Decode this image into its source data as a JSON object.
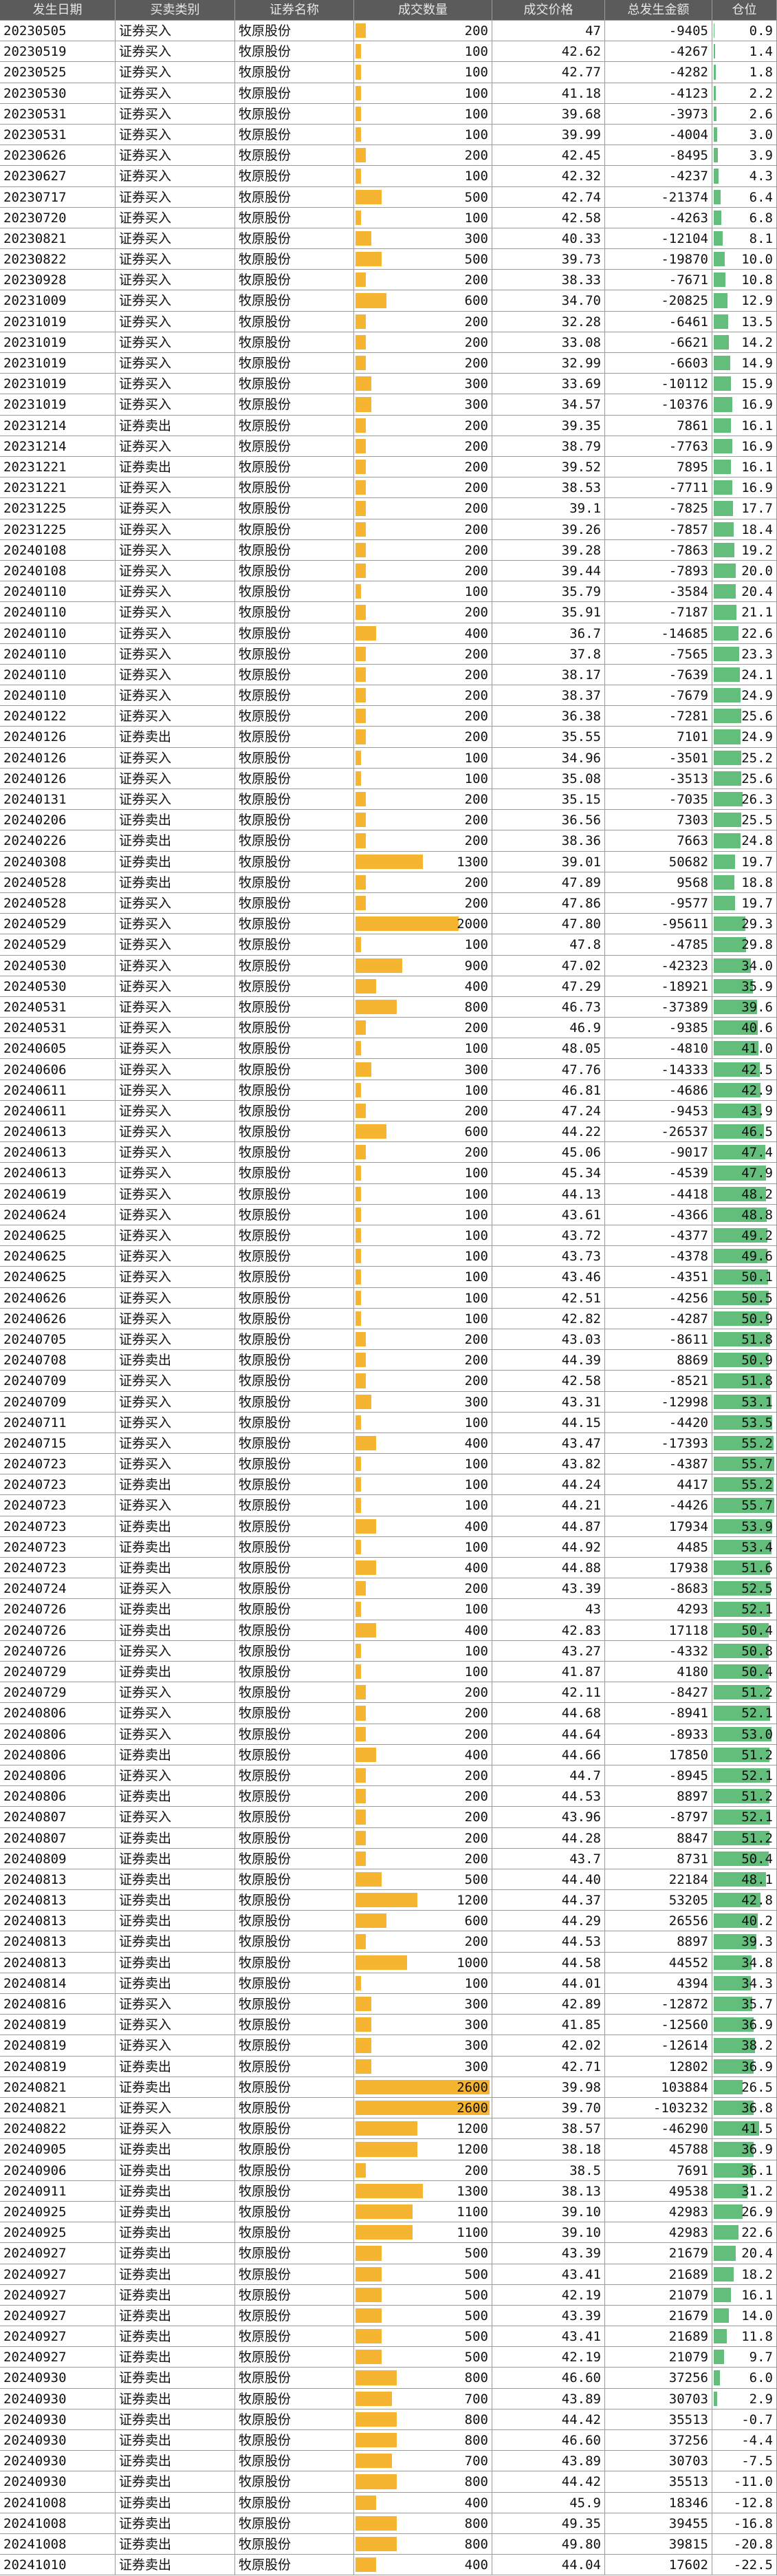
{
  "table": {
    "columns": [
      "发生日期",
      "买卖类别",
      "证券名称",
      "成交数量",
      "成交价格",
      "总发生金额",
      "仓位"
    ],
    "rows": [
      [
        "20230505",
        "证券买入",
        "牧原股份",
        200,
        "47",
        -9405,
        "0.9"
      ],
      [
        "20230519",
        "证券买入",
        "牧原股份",
        100,
        "42.62",
        -4267,
        "1.4"
      ],
      [
        "20230525",
        "证券买入",
        "牧原股份",
        100,
        "42.77",
        -4282,
        "1.8"
      ],
      [
        "20230530",
        "证券买入",
        "牧原股份",
        100,
        "41.18",
        -4123,
        "2.2"
      ],
      [
        "20230531",
        "证券买入",
        "牧原股份",
        100,
        "39.68",
        -3973,
        "2.6"
      ],
      [
        "20230531",
        "证券买入",
        "牧原股份",
        100,
        "39.99",
        -4004,
        "3.0"
      ],
      [
        "20230626",
        "证券买入",
        "牧原股份",
        200,
        "42.45",
        -8495,
        "3.9"
      ],
      [
        "20230627",
        "证券买入",
        "牧原股份",
        100,
        "42.32",
        -4237,
        "4.3"
      ],
      [
        "20230717",
        "证券买入",
        "牧原股份",
        500,
        "42.74",
        -21374,
        "6.4"
      ],
      [
        "20230720",
        "证券买入",
        "牧原股份",
        100,
        "42.58",
        -4263,
        "6.8"
      ],
      [
        "20230821",
        "证券买入",
        "牧原股份",
        300,
        "40.33",
        -12104,
        "8.1"
      ],
      [
        "20230822",
        "证券买入",
        "牧原股份",
        500,
        "39.73",
        -19870,
        "10.0"
      ],
      [
        "20230928",
        "证券买入",
        "牧原股份",
        200,
        "38.33",
        -7671,
        "10.8"
      ],
      [
        "20231009",
        "证券买入",
        "牧原股份",
        600,
        "34.70",
        -20825,
        "12.9"
      ],
      [
        "20231019",
        "证券买入",
        "牧原股份",
        200,
        "32.28",
        -6461,
        "13.5"
      ],
      [
        "20231019",
        "证券买入",
        "牧原股份",
        200,
        "33.08",
        -6621,
        "14.2"
      ],
      [
        "20231019",
        "证券买入",
        "牧原股份",
        200,
        "32.99",
        -6603,
        "14.9"
      ],
      [
        "20231019",
        "证券买入",
        "牧原股份",
        300,
        "33.69",
        -10112,
        "15.9"
      ],
      [
        "20231019",
        "证券买入",
        "牧原股份",
        300,
        "34.57",
        -10376,
        "16.9"
      ],
      [
        "20231214",
        "证券卖出",
        "牧原股份",
        200,
        "39.35",
        7861,
        "16.1"
      ],
      [
        "20231214",
        "证券买入",
        "牧原股份",
        200,
        "38.79",
        -7763,
        "16.9"
      ],
      [
        "20231221",
        "证券卖出",
        "牧原股份",
        200,
        "39.52",
        7895,
        "16.1"
      ],
      [
        "20231221",
        "证券买入",
        "牧原股份",
        200,
        "38.53",
        -7711,
        "16.9"
      ],
      [
        "20231225",
        "证券买入",
        "牧原股份",
        200,
        "39.1",
        -7825,
        "17.7"
      ],
      [
        "20231225",
        "证券买入",
        "牧原股份",
        200,
        "39.26",
        -7857,
        "18.4"
      ],
      [
        "20240108",
        "证券买入",
        "牧原股份",
        200,
        "39.28",
        -7863,
        "19.2"
      ],
      [
        "20240108",
        "证券买入",
        "牧原股份",
        200,
        "39.44",
        -7893,
        "20.0"
      ],
      [
        "20240110",
        "证券买入",
        "牧原股份",
        100,
        "35.79",
        -3584,
        "20.4"
      ],
      [
        "20240110",
        "证券买入",
        "牧原股份",
        200,
        "35.91",
        -7187,
        "21.1"
      ],
      [
        "20240110",
        "证券买入",
        "牧原股份",
        400,
        "36.7",
        -14685,
        "22.6"
      ],
      [
        "20240110",
        "证券买入",
        "牧原股份",
        200,
        "37.8",
        -7565,
        "23.3"
      ],
      [
        "20240110",
        "证券买入",
        "牧原股份",
        200,
        "38.17",
        -7639,
        "24.1"
      ],
      [
        "20240110",
        "证券买入",
        "牧原股份",
        200,
        "38.37",
        -7679,
        "24.9"
      ],
      [
        "20240122",
        "证券买入",
        "牧原股份",
        200,
        "36.38",
        -7281,
        "25.6"
      ],
      [
        "20240126",
        "证券卖出",
        "牧原股份",
        200,
        "35.55",
        7101,
        "24.9"
      ],
      [
        "20240126",
        "证券买入",
        "牧原股份",
        100,
        "34.96",
        -3501,
        "25.2"
      ],
      [
        "20240126",
        "证券买入",
        "牧原股份",
        100,
        "35.08",
        -3513,
        "25.6"
      ],
      [
        "20240131",
        "证券买入",
        "牧原股份",
        200,
        "35.15",
        -7035,
        "26.3"
      ],
      [
        "20240206",
        "证券卖出",
        "牧原股份",
        200,
        "36.56",
        7303,
        "25.5"
      ],
      [
        "20240226",
        "证券卖出",
        "牧原股份",
        200,
        "38.36",
        7663,
        "24.8"
      ],
      [
        "20240308",
        "证券卖出",
        "牧原股份",
        1300,
        "39.01",
        50682,
        "19.7"
      ],
      [
        "20240528",
        "证券卖出",
        "牧原股份",
        200,
        "47.89",
        9568,
        "18.8"
      ],
      [
        "20240528",
        "证券买入",
        "牧原股份",
        200,
        "47.86",
        -9577,
        "19.7"
      ],
      [
        "20240529",
        "证券买入",
        "牧原股份",
        2000,
        "47.80",
        -95611,
        "29.3"
      ],
      [
        "20240529",
        "证券买入",
        "牧原股份",
        100,
        "47.8",
        -4785,
        "29.8"
      ],
      [
        "20240530",
        "证券买入",
        "牧原股份",
        900,
        "47.02",
        -42323,
        "34.0"
      ],
      [
        "20240530",
        "证券买入",
        "牧原股份",
        400,
        "47.29",
        -18921,
        "35.9"
      ],
      [
        "20240531",
        "证券买入",
        "牧原股份",
        800,
        "46.73",
        -37389,
        "39.6"
      ],
      [
        "20240531",
        "证券买入",
        "牧原股份",
        200,
        "46.9",
        -9385,
        "40.6"
      ],
      [
        "20240605",
        "证券买入",
        "牧原股份",
        100,
        "48.05",
        -4810,
        "41.0"
      ],
      [
        "20240606",
        "证券买入",
        "牧原股份",
        300,
        "47.76",
        -14333,
        "42.5"
      ],
      [
        "20240611",
        "证券买入",
        "牧原股份",
        100,
        "46.81",
        -4686,
        "42.9"
      ],
      [
        "20240611",
        "证券买入",
        "牧原股份",
        200,
        "47.24",
        -9453,
        "43.9"
      ],
      [
        "20240613",
        "证券买入",
        "牧原股份",
        600,
        "44.22",
        -26537,
        "46.5"
      ],
      [
        "20240613",
        "证券买入",
        "牧原股份",
        200,
        "45.06",
        -9017,
        "47.4"
      ],
      [
        "20240613",
        "证券买入",
        "牧原股份",
        100,
        "45.34",
        -4539,
        "47.9"
      ],
      [
        "20240619",
        "证券买入",
        "牧原股份",
        100,
        "44.13",
        -4418,
        "48.2"
      ],
      [
        "20240624",
        "证券买入",
        "牧原股份",
        100,
        "43.61",
        -4366,
        "48.8"
      ],
      [
        "20240625",
        "证券买入",
        "牧原股份",
        100,
        "43.72",
        -4377,
        "49.2"
      ],
      [
        "20240625",
        "证券买入",
        "牧原股份",
        100,
        "43.73",
        -4378,
        "49.6"
      ],
      [
        "20240625",
        "证券买入",
        "牧原股份",
        100,
        "43.46",
        -4351,
        "50.1"
      ],
      [
        "20240626",
        "证券买入",
        "牧原股份",
        100,
        "42.51",
        -4256,
        "50.5"
      ],
      [
        "20240626",
        "证券买入",
        "牧原股份",
        100,
        "42.82",
        -4287,
        "50.9"
      ],
      [
        "20240705",
        "证券买入",
        "牧原股份",
        200,
        "43.03",
        -8611,
        "51.8"
      ],
      [
        "20240708",
        "证券卖出",
        "牧原股份",
        200,
        "44.39",
        8869,
        "50.9"
      ],
      [
        "20240709",
        "证券买入",
        "牧原股份",
        200,
        "42.58",
        -8521,
        "51.8"
      ],
      [
        "20240709",
        "证券买入",
        "牧原股份",
        300,
        "43.31",
        -12998,
        "53.1"
      ],
      [
        "20240711",
        "证券买入",
        "牧原股份",
        100,
        "44.15",
        -4420,
        "53.5"
      ],
      [
        "20240715",
        "证券买入",
        "牧原股份",
        400,
        "43.47",
        -17393,
        "55.2"
      ],
      [
        "20240723",
        "证券买入",
        "牧原股份",
        100,
        "43.82",
        -4387,
        "55.7"
      ],
      [
        "20240723",
        "证券卖出",
        "牧原股份",
        100,
        "44.24",
        4417,
        "55.2"
      ],
      [
        "20240723",
        "证券买入",
        "牧原股份",
        100,
        "44.21",
        -4426,
        "55.7"
      ],
      [
        "20240723",
        "证券卖出",
        "牧原股份",
        400,
        "44.87",
        17934,
        "53.9"
      ],
      [
        "20240723",
        "证券卖出",
        "牧原股份",
        100,
        "44.92",
        4485,
        "53.4"
      ],
      [
        "20240723",
        "证券卖出",
        "牧原股份",
        400,
        "44.88",
        17938,
        "51.6"
      ],
      [
        "20240724",
        "证券买入",
        "牧原股份",
        200,
        "43.39",
        -8683,
        "52.5"
      ],
      [
        "20240726",
        "证券卖出",
        "牧原股份",
        100,
        "43",
        4293,
        "52.1"
      ],
      [
        "20240726",
        "证券卖出",
        "牧原股份",
        400,
        "42.83",
        17118,
        "50.4"
      ],
      [
        "20240726",
        "证券买入",
        "牧原股份",
        100,
        "43.27",
        -4332,
        "50.8"
      ],
      [
        "20240729",
        "证券卖出",
        "牧原股份",
        100,
        "41.87",
        4180,
        "50.4"
      ],
      [
        "20240729",
        "证券买入",
        "牧原股份",
        200,
        "42.11",
        -8427,
        "51.2"
      ],
      [
        "20240806",
        "证券买入",
        "牧原股份",
        200,
        "44.68",
        -8941,
        "52.1"
      ],
      [
        "20240806",
        "证券买入",
        "牧原股份",
        200,
        "44.64",
        -8933,
        "53.0"
      ],
      [
        "20240806",
        "证券卖出",
        "牧原股份",
        400,
        "44.66",
        17850,
        "51.2"
      ],
      [
        "20240806",
        "证券买入",
        "牧原股份",
        200,
        "44.7",
        -8945,
        "52.1"
      ],
      [
        "20240806",
        "证券卖出",
        "牧原股份",
        200,
        "44.53",
        8897,
        "51.2"
      ],
      [
        "20240807",
        "证券买入",
        "牧原股份",
        200,
        "43.96",
        -8797,
        "52.1"
      ],
      [
        "20240807",
        "证券卖出",
        "牧原股份",
        200,
        "44.28",
        8847,
        "51.2"
      ],
      [
        "20240809",
        "证券卖出",
        "牧原股份",
        200,
        "43.7",
        8731,
        "50.4"
      ],
      [
        "20240813",
        "证券卖出",
        "牧原股份",
        500,
        "44.40",
        22184,
        "48.1"
      ],
      [
        "20240813",
        "证券卖出",
        "牧原股份",
        1200,
        "44.37",
        53205,
        "42.8"
      ],
      [
        "20240813",
        "证券卖出",
        "牧原股份",
        600,
        "44.29",
        26556,
        "40.2"
      ],
      [
        "20240813",
        "证券卖出",
        "牧原股份",
        200,
        "44.53",
        8897,
        "39.3"
      ],
      [
        "20240813",
        "证券卖出",
        "牧原股份",
        1000,
        "44.58",
        44552,
        "34.8"
      ],
      [
        "20240814",
        "证券卖出",
        "牧原股份",
        100,
        "44.01",
        4394,
        "34.3"
      ],
      [
        "20240816",
        "证券买入",
        "牧原股份",
        300,
        "42.89",
        -12872,
        "35.7"
      ],
      [
        "20240819",
        "证券买入",
        "牧原股份",
        300,
        "41.85",
        -12560,
        "36.9"
      ],
      [
        "20240819",
        "证券买入",
        "牧原股份",
        300,
        "42.02",
        -12614,
        "38.2"
      ],
      [
        "20240819",
        "证券卖出",
        "牧原股份",
        300,
        "42.71",
        12802,
        "36.9"
      ],
      [
        "20240821",
        "证券卖出",
        "牧原股份",
        2600,
        "39.98",
        103884,
        "26.5"
      ],
      [
        "20240821",
        "证券买入",
        "牧原股份",
        2600,
        "39.70",
        -103232,
        "36.8"
      ],
      [
        "20240822",
        "证券买入",
        "牧原股份",
        1200,
        "38.57",
        -46290,
        "41.5"
      ],
      [
        "20240905",
        "证券卖出",
        "牧原股份",
        1200,
        "38.18",
        45788,
        "36.9"
      ],
      [
        "20240906",
        "证券卖出",
        "牧原股份",
        200,
        "38.5",
        7691,
        "36.1"
      ],
      [
        "20240911",
        "证券卖出",
        "牧原股份",
        1300,
        "38.13",
        49538,
        "31.2"
      ],
      [
        "20240925",
        "证券卖出",
        "牧原股份",
        1100,
        "39.10",
        42983,
        "26.9"
      ],
      [
        "20240925",
        "证券卖出",
        "牧原股份",
        1100,
        "39.10",
        42983,
        "22.6"
      ],
      [
        "20240927",
        "证券卖出",
        "牧原股份",
        500,
        "43.39",
        21679,
        "20.4"
      ],
      [
        "20240927",
        "证券卖出",
        "牧原股份",
        500,
        "43.41",
        21689,
        "18.2"
      ],
      [
        "20240927",
        "证券卖出",
        "牧原股份",
        500,
        "42.19",
        21079,
        "16.1"
      ],
      [
        "20240927",
        "证券卖出",
        "牧原股份",
        500,
        "43.39",
        21679,
        "14.0"
      ],
      [
        "20240927",
        "证券卖出",
        "牧原股份",
        500,
        "43.41",
        21689,
        "11.8"
      ],
      [
        "20240927",
        "证券卖出",
        "牧原股份",
        500,
        "42.19",
        21079,
        "9.7"
      ],
      [
        "20240930",
        "证券卖出",
        "牧原股份",
        800,
        "46.60",
        37256,
        "6.0"
      ],
      [
        "20240930",
        "证券卖出",
        "牧原股份",
        700,
        "43.89",
        30703,
        "2.9"
      ],
      [
        "20240930",
        "证券卖出",
        "牧原股份",
        800,
        "44.42",
        35513,
        "-0.7"
      ],
      [
        "20240930",
        "证券卖出",
        "牧原股份",
        800,
        "46.60",
        37256,
        "-4.4"
      ],
      [
        "20240930",
        "证券卖出",
        "牧原股份",
        700,
        "43.89",
        30703,
        "-7.5"
      ],
      [
        "20240930",
        "证券卖出",
        "牧原股份",
        800,
        "44.42",
        35513,
        "-11.0"
      ],
      [
        "20241008",
        "证券卖出",
        "牧原股份",
        400,
        "45.9",
        18346,
        "-12.8"
      ],
      [
        "20241008",
        "证券卖出",
        "牧原股份",
        800,
        "49.35",
        39455,
        "-16.8"
      ],
      [
        "20241008",
        "证券卖出",
        "牧原股份",
        800,
        "49.80",
        39815,
        "-20.8"
      ],
      [
        "20241010",
        "证券卖出",
        "牧原股份",
        400,
        "44.04",
        17602,
        "-22.5"
      ]
    ]
  }
}
